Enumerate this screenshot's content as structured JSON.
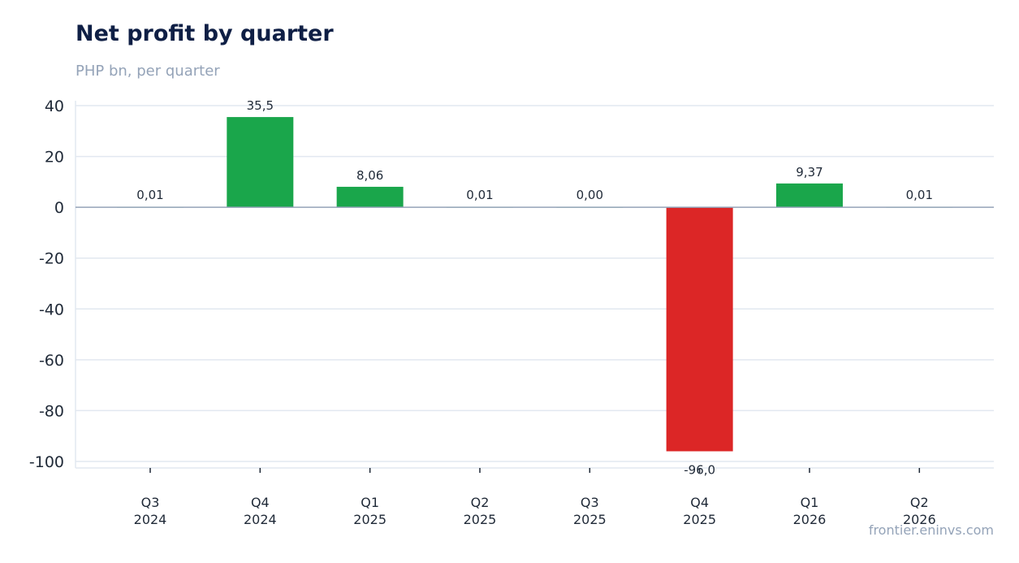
{
  "chart_data": {
    "type": "bar",
    "title": "Net profit by quarter",
    "subtitle": "PHP bn, per quarter",
    "categories": [
      [
        "Q3",
        "2024"
      ],
      [
        "Q4",
        "2024"
      ],
      [
        "Q1",
        "2025"
      ],
      [
        "Q2",
        "2025"
      ],
      [
        "Q3",
        "2025"
      ],
      [
        "Q4",
        "2025"
      ],
      [
        "Q1",
        "2026"
      ],
      [
        "Q2",
        "2026"
      ]
    ],
    "values": [
      0.01,
      35.5,
      8.06,
      0.01,
      0.0,
      -96.0,
      9.37,
      0.01
    ],
    "value_labels": [
      "0,01",
      "35,5",
      "8,06",
      "0,01",
      "0,00",
      "-96,0",
      "9,37",
      "0,01"
    ],
    "ylim": [
      -100,
      40
    ],
    "yticks": [
      40,
      20,
      0,
      -20,
      -40,
      -60,
      -80,
      -100
    ],
    "ytick_labels": [
      "40",
      "20",
      "0",
      "-20",
      "-40",
      "-60",
      "-80",
      "-100"
    ],
    "grid": true,
    "legend": "none",
    "colors": {
      "positive": "#1aa64b",
      "negative": "#dc2626",
      "grid": "#e2e8f0",
      "zero_line": "#94a3b8"
    }
  },
  "source": "frontier.eninvs.com"
}
